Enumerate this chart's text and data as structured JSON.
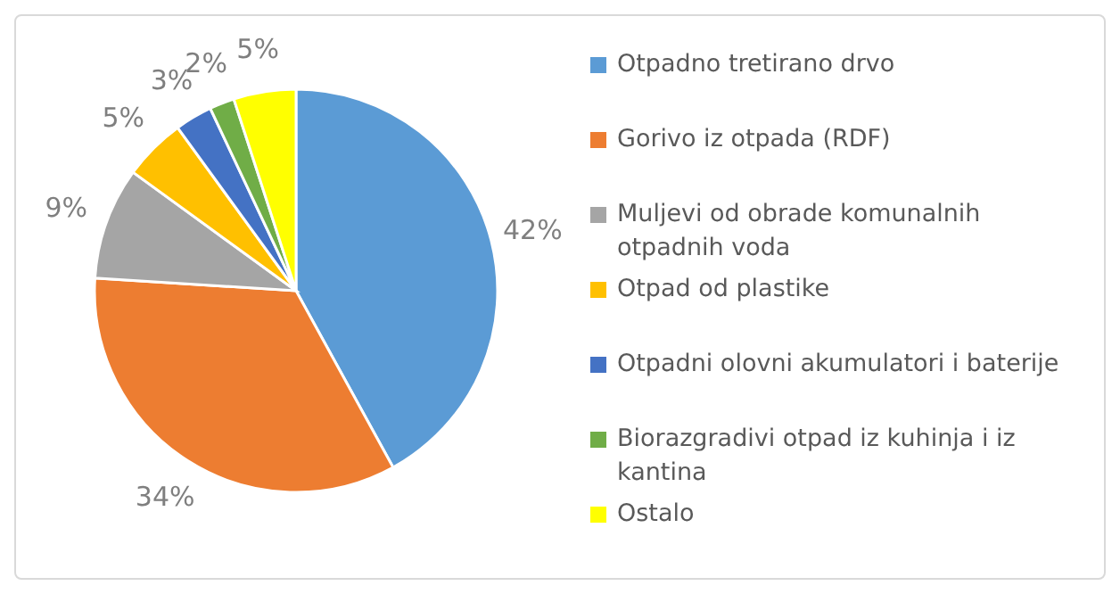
{
  "chart_data": {
    "type": "pie",
    "categories": [
      "Otpadno tretirano drvo",
      "Gorivo iz otpada (RDF)",
      "Muljevi od obrade komunalnih otpadnih voda",
      "Otpad od plastike",
      "Otpadni olovni akumulatori i baterije",
      "Biorazgradivi otpad iz kuhinja i iz kantina",
      "Ostalo"
    ],
    "values": [
      42,
      34,
      9,
      5,
      3,
      2,
      5
    ],
    "colors": [
      "#5b9bd5",
      "#ed7d31",
      "#a5a5a5",
      "#ffc000",
      "#4472c4",
      "#70ad47",
      "#ffff00"
    ],
    "value_labels": [
      "42%",
      "34%",
      "9%",
      "5%",
      "3%",
      "2%",
      "5%"
    ],
    "legend": "right"
  }
}
